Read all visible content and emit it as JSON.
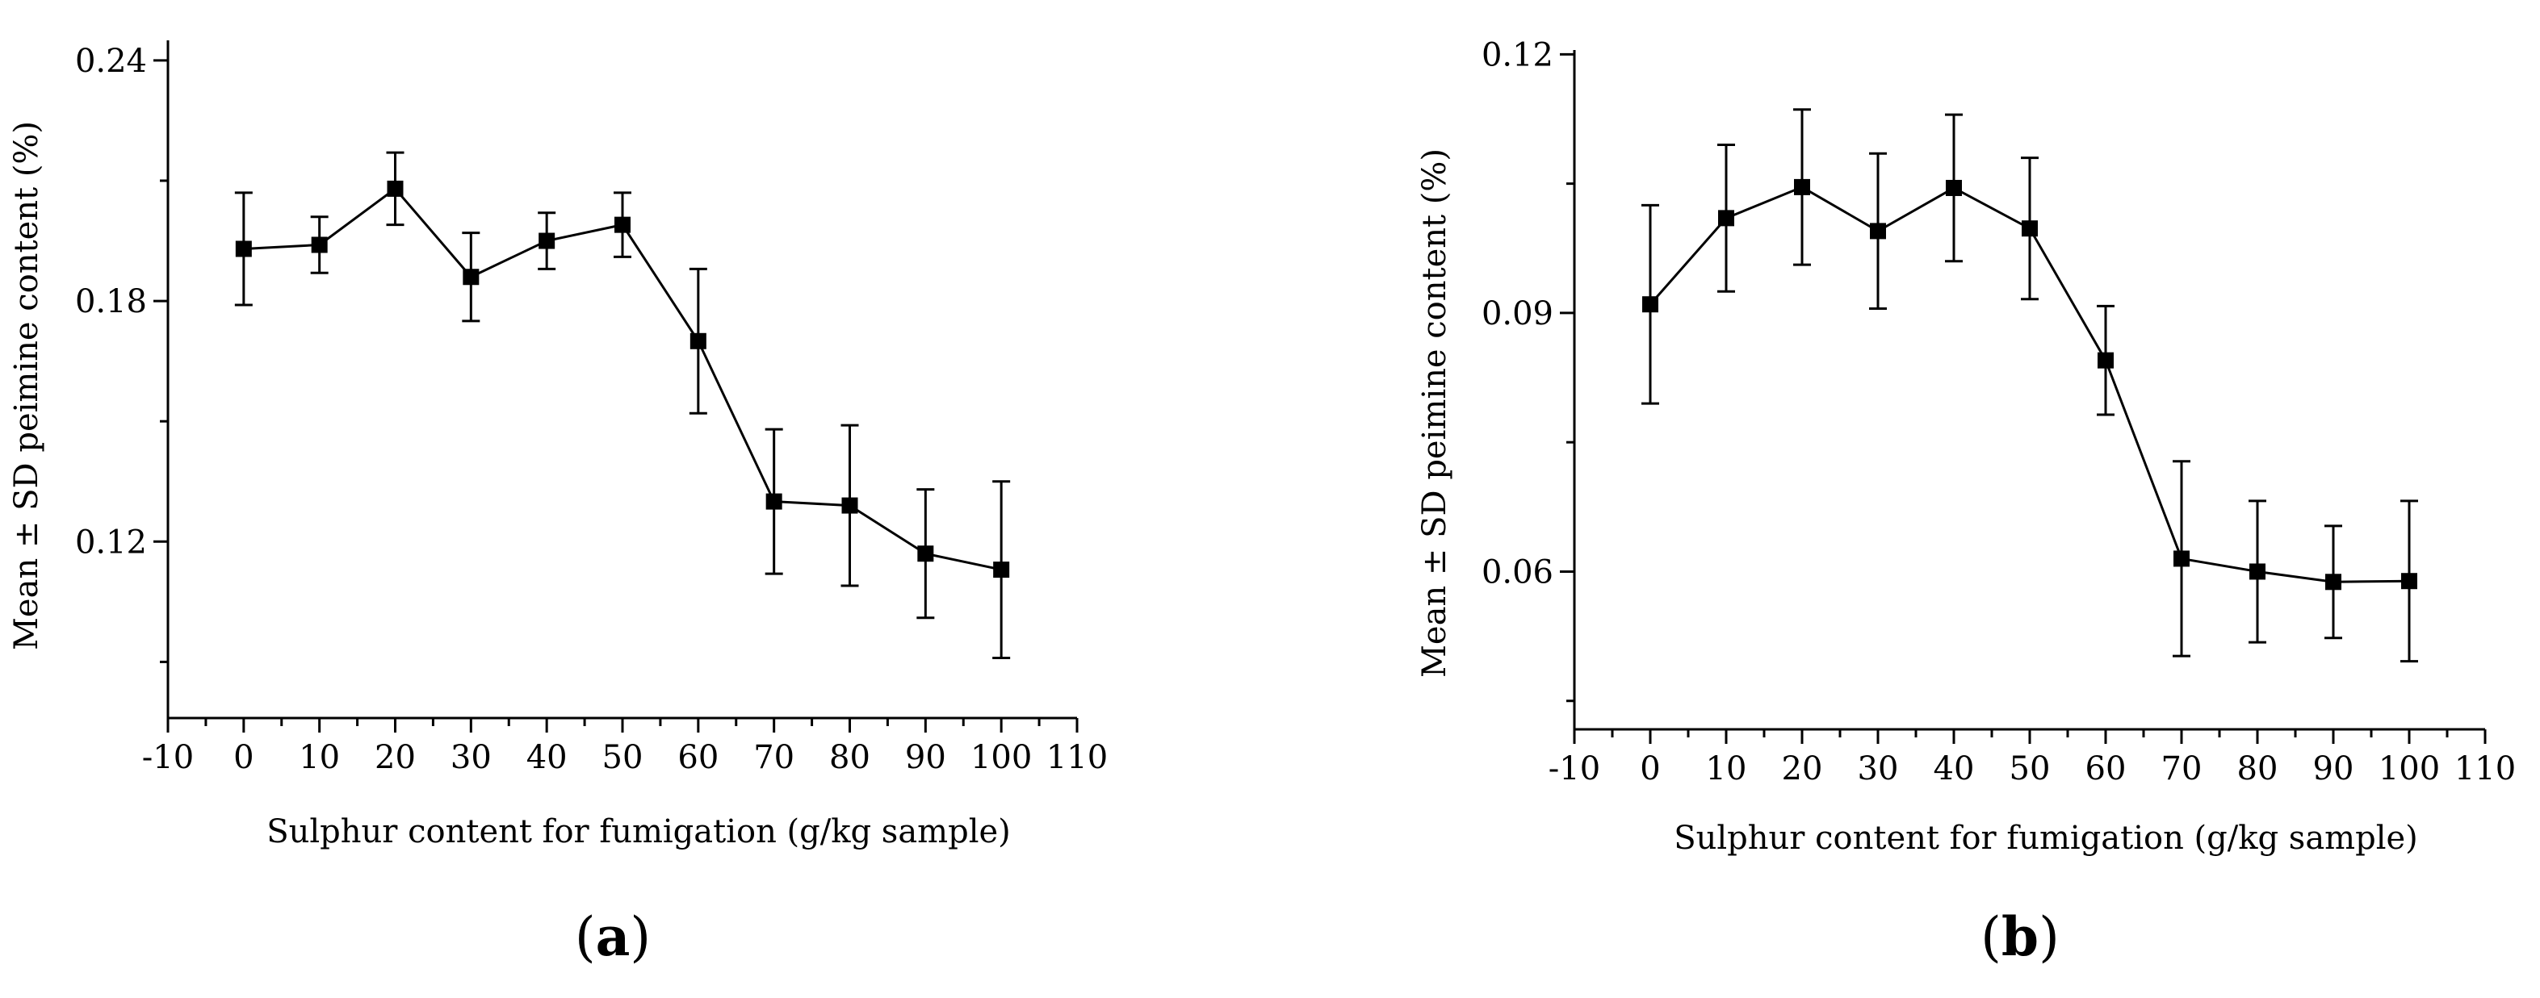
{
  "chart_data": [
    {
      "type": "line",
      "panel_label": "a",
      "title": "",
      "xlabel": "Sulphur content for fumigation (g/kg sample)",
      "ylabel": "Mean ± SD peimine content (%)",
      "xlim": [
        -10,
        110
      ],
      "ylim": [
        0.076,
        0.245
      ],
      "xticks": [
        -10,
        0,
        10,
        20,
        30,
        40,
        50,
        60,
        70,
        80,
        90,
        100,
        110
      ],
      "xtick_labels": [
        "-10",
        "0",
        "10",
        "20",
        "30",
        "40",
        "50",
        "60",
        "70",
        "80",
        "90",
        "100",
        "110"
      ],
      "yticks": [
        0.12,
        0.18,
        0.24
      ],
      "ytick_labels": [
        "0.12",
        "0.18",
        "0.24"
      ],
      "series": [
        {
          "name": "peimine",
          "x": [
            0,
            10,
            20,
            30,
            40,
            50,
            60,
            70,
            80,
            90,
            100
          ],
          "y": [
            0.193,
            0.194,
            0.208,
            0.186,
            0.195,
            0.199,
            0.17,
            0.13,
            0.129,
            0.117,
            0.113
          ],
          "sd": [
            0.014,
            0.007,
            0.009,
            0.011,
            0.007,
            0.008,
            0.018,
            0.018,
            0.02,
            0.016,
            0.022
          ]
        }
      ]
    },
    {
      "type": "line",
      "panel_label": "b",
      "title": "",
      "xlabel": "Sulphur content for fumigation (g/kg sample)",
      "ylabel": "Mean ± SD peimine content (%)",
      "xlim": [
        -10,
        110
      ],
      "ylim": [
        0.0417,
        0.1205
      ],
      "xticks": [
        -10,
        0,
        10,
        20,
        30,
        40,
        50,
        60,
        70,
        80,
        90,
        100,
        110
      ],
      "xtick_labels": [
        "-10",
        "0",
        "10",
        "20",
        "30",
        "40",
        "50",
        "60",
        "70",
        "80",
        "90",
        "100",
        "110"
      ],
      "yticks": [
        0.06,
        0.09,
        0.12
      ],
      "ytick_labels": [
        "0.06",
        "0.09",
        "0.12"
      ],
      "series": [
        {
          "name": "peimine",
          "x": [
            0,
            10,
            20,
            30,
            40,
            50,
            60,
            70,
            80,
            90,
            100
          ],
          "y": [
            0.091,
            0.101,
            0.1046,
            0.0995,
            0.1045,
            0.0998,
            0.0845,
            0.0615,
            0.06,
            0.0588,
            0.0589
          ],
          "sd": [
            0.0115,
            0.0085,
            0.009,
            0.009,
            0.0085,
            0.0082,
            0.0063,
            0.0113,
            0.0082,
            0.0065,
            0.0093
          ]
        }
      ]
    }
  ]
}
